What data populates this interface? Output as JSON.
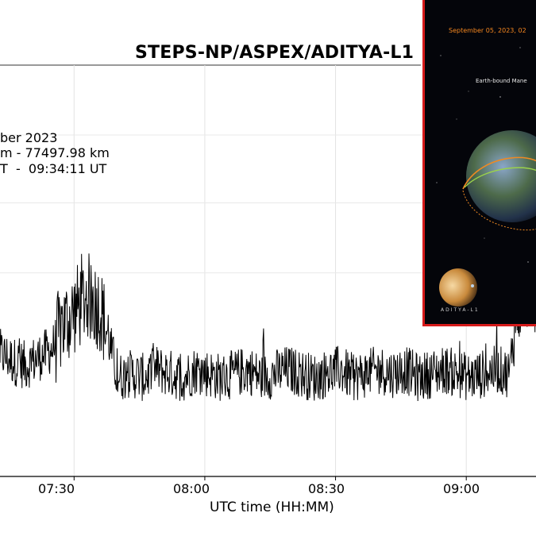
{
  "chart_data": {
    "type": "line",
    "title": "STEPS-NP/ASPEX/ADITYA-L1",
    "info_lines": [
      "ber 2023",
      "m - 77497.98 km",
      "T  -  09:34:11 UT"
    ],
    "xlabel": "UTC time (HH:MM)",
    "ylabel": "",
    "x_ticks": [
      "07:30",
      "08:00",
      "08:30",
      "09:00"
    ],
    "xlim_minutes_visible": [
      "07:13",
      "09:16"
    ],
    "grid": true,
    "series": [
      {
        "color": "#000000",
        "x": [
          "07:13",
          "07:16",
          "07:19",
          "07:22",
          "07:25",
          "07:27",
          "07:30",
          "07:33",
          "07:36",
          "07:38",
          "07:40",
          "07:43",
          "07:46",
          "07:49",
          "07:52",
          "07:55",
          "07:58",
          "08:01",
          "08:04",
          "08:07",
          "08:10",
          "08:13",
          "08:16",
          "08:19",
          "08:22",
          "08:25",
          "08:28",
          "08:31",
          "08:34",
          "08:37",
          "08:40",
          "08:43",
          "08:46",
          "08:49",
          "08:52",
          "08:55",
          "08:58",
          "09:01",
          "09:04",
          "09:07",
          "09:10",
          "09:11",
          "09:13",
          "09:16"
        ],
        "y": [
          0.3,
          0.28,
          0.27,
          0.29,
          0.31,
          0.36,
          0.4,
          0.44,
          0.41,
          0.33,
          0.24,
          0.25,
          0.24,
          0.26,
          0.25,
          0.24,
          0.26,
          0.25,
          0.24,
          0.25,
          0.26,
          0.24,
          0.25,
          0.26,
          0.25,
          0.24,
          0.25,
          0.26,
          0.24,
          0.25,
          0.26,
          0.25,
          0.26,
          0.24,
          0.25,
          0.26,
          0.25,
          0.24,
          0.25,
          0.26,
          0.25,
          0.38,
          0.46,
          0.44
        ]
      }
    ]
  },
  "inset": {
    "date_text": "September 05, 2023, 02",
    "subtitle": "Earth-bound Mane",
    "logo_text": "ADITYA-L1",
    "border_color": "#d61b1b"
  }
}
